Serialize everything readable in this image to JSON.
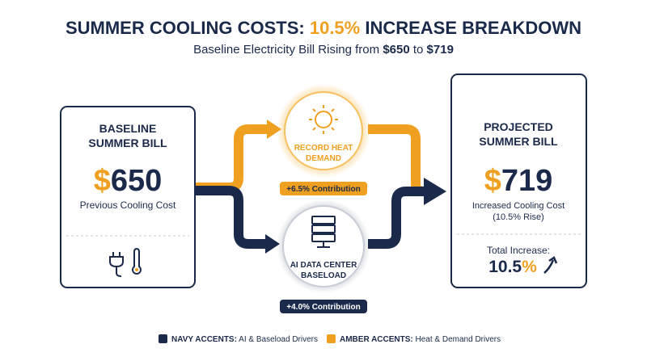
{
  "header": {
    "title": {
      "before": "SUMMER COOLING COSTS: ",
      "highlight": "10.5%",
      "after": " INCREASE BREAKDOWN"
    },
    "subtitle": {
      "before": "Baseline Electricity Bill Rising from ",
      "from": "$650",
      "middle": " to ",
      "to": "$719"
    }
  },
  "baseline": {
    "title_lines": [
      "BASELINE",
      "SUMMER BILL"
    ],
    "currency": "$",
    "amount": "650",
    "caption": "Previous Cooling Cost"
  },
  "drivers": [
    {
      "label_lines": [
        "RECORD HEAT",
        "DEMAND"
      ],
      "badge": "+6.5% Contribution"
    },
    {
      "label_lines": [
        "AI DATA CENTER",
        "BASELOAD"
      ],
      "badge": "+4.0% Contribution"
    }
  ],
  "projected": {
    "title_lines": [
      "PROJECTED",
      "SUMMER BILL"
    ],
    "currency": "$",
    "amount": "719",
    "caption_lines": [
      "Increased Cooling Cost",
      "(10.5% Rise)"
    ],
    "total_label": "Total Increase:",
    "total_number": "10.5",
    "total_unit": "%"
  },
  "legend": [
    {
      "key": "NAVY ACCENTS:",
      "text": " AI & Baseload Drivers"
    },
    {
      "key": "AMBER ACCENTS:",
      "text": " Heat & Demand Drivers"
    }
  ]
}
